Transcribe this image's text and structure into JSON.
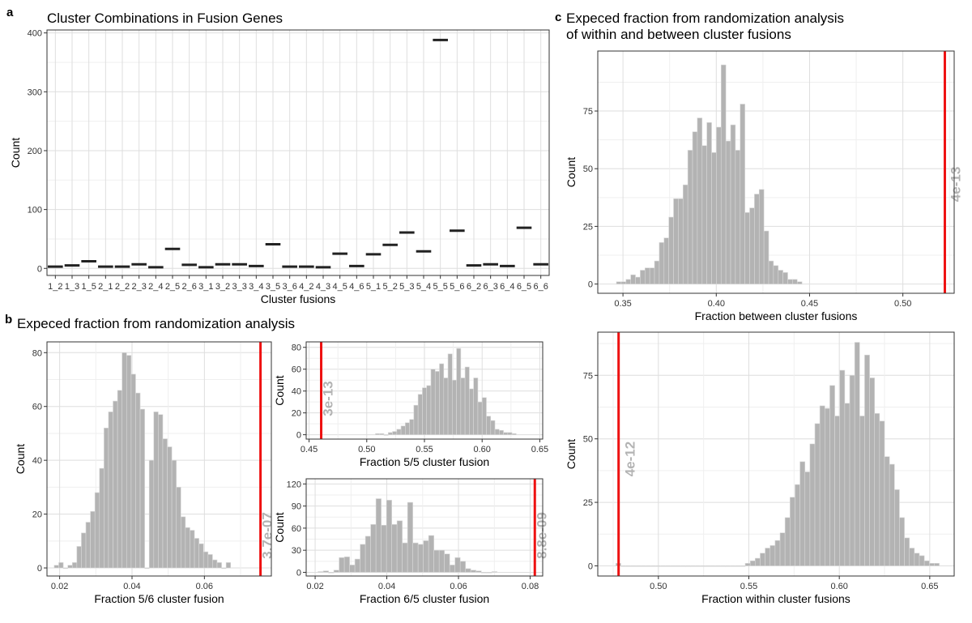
{
  "panel_letters": {
    "a": "a",
    "b": "b",
    "c": "c"
  },
  "section_titles": {
    "b": "Expeced fraction from randomization analysis",
    "c_line1": "Expeced fraction from randomization analysis",
    "c_line2": "of within and between cluster fusions"
  },
  "colors": {
    "bar_fill": "#b3b3b3",
    "bar_stroke": "#d9d9d9",
    "red_line": "#ee1111",
    "annotation": "#b3b3b3",
    "grid_major": "#dedede",
    "grid_minor": "#efefef",
    "crossbar": "#222222"
  },
  "chart_data": [
    {
      "id": "a",
      "type": "crossbar",
      "title": "Cluster Combinations in Fusion Genes",
      "xlabel": "Cluster fusions",
      "ylabel": "Count",
      "ylim": [
        -12,
        405
      ],
      "yticks": [
        0,
        100,
        200,
        300,
        400
      ],
      "categories": [
        "1_2",
        "1_3",
        "1_5",
        "2_1",
        "2_2",
        "2_3",
        "2_4",
        "2_5",
        "2_6",
        "3_1",
        "3_2",
        "3_3",
        "3_4",
        "3_5",
        "3_6",
        "4_2",
        "4_3",
        "4_5",
        "4_6",
        "5_1",
        "5_2",
        "5_3",
        "5_4",
        "5_5",
        "5_6",
        "6_2",
        "6_3",
        "6_4",
        "6_5",
        "6_6"
      ],
      "tick_labels": [
        "1_2",
        "1_3",
        "1_5",
        "2_1",
        "2_2",
        "2_3",
        "2_4",
        "2_5",
        "2_6",
        "3_1",
        "3_2",
        "3_3",
        "3_4",
        "3_5",
        "3_6",
        "4_2",
        "4_3",
        "4_5",
        "4_6",
        "5_1",
        "5_2",
        "5_3",
        "5_4",
        "5_5",
        "5_6",
        "6_2",
        "6_3",
        "6_4",
        "6_5",
        "6_6"
      ],
      "values": [
        3,
        5,
        12,
        3,
        3,
        7,
        2,
        33,
        6,
        2,
        7,
        7,
        4,
        41,
        3,
        3,
        2,
        25,
        4,
        24,
        40,
        61,
        29,
        388,
        64,
        5,
        7,
        4,
        69,
        7
      ]
    },
    {
      "id": "b_main",
      "type": "histogram",
      "xlabel": "Fraction 5/6 cluster fusion",
      "ylabel": "Count",
      "xlim": [
        0.0165,
        0.0785
      ],
      "ylim": [
        -3,
        84
      ],
      "xticks": [
        0.02,
        0.04,
        0.06
      ],
      "xtick_labels": [
        "0.02",
        "0.04",
        "0.06"
      ],
      "yticks": [
        0,
        20,
        40,
        60,
        80
      ],
      "bin_start": 0.0185,
      "bin_width": 0.00125,
      "counts": [
        1,
        2,
        0,
        1,
        2,
        8,
        13,
        17,
        21,
        28,
        37,
        52,
        58,
        62,
        66,
        80,
        79,
        72,
        65,
        59,
        0,
        40,
        58,
        57,
        48,
        45,
        40,
        30,
        19,
        15,
        14,
        11,
        9,
        6,
        5,
        3,
        2,
        0,
        2
      ],
      "red_line_x": 0.0755,
      "annotation": "3.7e-07"
    },
    {
      "id": "b_top",
      "type": "histogram",
      "xlabel": "Fraction 5/5 cluster fusion",
      "ylabel": "Count",
      "xlim": [
        0.4475,
        0.6525
      ],
      "ylim": [
        -4,
        85
      ],
      "xticks": [
        0.45,
        0.5,
        0.55,
        0.6,
        0.65
      ],
      "xtick_labels": [
        "0.45",
        "0.50",
        "0.55",
        "0.60",
        "0.65"
      ],
      "yticks": [
        0,
        20,
        40,
        60,
        80
      ],
      "bin_start": 0.5075,
      "bin_width": 0.0037,
      "counts": [
        1,
        1,
        0,
        2,
        3,
        5,
        8,
        11,
        14,
        27,
        37,
        43,
        45,
        60,
        58,
        65,
        52,
        74,
        50,
        79,
        52,
        62,
        42,
        52,
        30,
        34,
        17,
        13,
        5,
        4,
        2,
        2,
        1
      ],
      "red_line_x": 0.4605,
      "annotation": "3e-13"
    },
    {
      "id": "b_bottom",
      "type": "histogram",
      "xlabel": "Fraction 6/5 cluster fusion",
      "ylabel": "Count",
      "xlim": [
        0.0175,
        0.0835
      ],
      "ylim": [
        -5,
        127
      ],
      "xticks": [
        0.02,
        0.04,
        0.06,
        0.08
      ],
      "xtick_labels": [
        "0.02",
        "0.04",
        "0.06",
        "0.08"
      ],
      "yticks": [
        0,
        30,
        60,
        90,
        120
      ],
      "bin_start": 0.0208,
      "bin_width": 0.00147,
      "counts": [
        1,
        2,
        0,
        3,
        20,
        21,
        10,
        18,
        38,
        49,
        65,
        100,
        64,
        98,
        65,
        70,
        40,
        95,
        40,
        38,
        43,
        50,
        30,
        30,
        25,
        10,
        20,
        15,
        5,
        3,
        2,
        0,
        0,
        1
      ],
      "red_line_x": 0.0813,
      "annotation": "8.8e-09"
    },
    {
      "id": "c_top",
      "type": "histogram",
      "xlabel": "Fraction between cluster fusions",
      "ylabel": "Count",
      "xlim": [
        0.3365,
        0.5275
      ],
      "ylim": [
        -4,
        101
      ],
      "xticks": [
        0.35,
        0.4,
        0.45,
        0.5
      ],
      "xtick_labels": [
        "0.35",
        "0.40",
        "0.45",
        "0.50"
      ],
      "yticks": [
        0,
        25,
        50,
        75
      ],
      "bin_start": 0.3465,
      "bin_width": 0.00255,
      "counts": [
        1,
        1,
        2,
        4,
        3,
        6,
        7,
        7,
        10,
        18,
        20,
        29,
        37,
        37,
        43,
        58,
        66,
        72,
        60,
        70,
        57,
        68,
        95,
        62,
        69,
        58,
        78,
        31,
        33,
        39,
        41,
        23,
        10,
        8,
        6,
        5,
        2,
        2,
        1
      ],
      "red_line_x": 0.5225,
      "annotation": "4e-13"
    },
    {
      "id": "c_bottom",
      "type": "histogram",
      "xlabel": "Fraction within cluster fusions",
      "ylabel": "Count",
      "xlim": [
        0.4665,
        0.6635
      ],
      "ylim": [
        -4,
        92
      ],
      "xticks": [
        0.5,
        0.55,
        0.6,
        0.65
      ],
      "xtick_labels": [
        "0.50",
        "0.55",
        "0.60",
        "0.65"
      ],
      "yticks": [
        0,
        25,
        50,
        75
      ],
      "bin_start": 0.4765,
      "bin_width": 0.00275,
      "counts": [
        1,
        0,
        0,
        0,
        0,
        0,
        0,
        0,
        0,
        0,
        0,
        0,
        0,
        0,
        0,
        0,
        0,
        0,
        0,
        0,
        0,
        0,
        0,
        0,
        0,
        0,
        1,
        2,
        3,
        5,
        7,
        8,
        10,
        13,
        19,
        27,
        32,
        41,
        37,
        48,
        56,
        63,
        62,
        71,
        59,
        77,
        64,
        75,
        88,
        59,
        83,
        74,
        60,
        57,
        43,
        40,
        30,
        19,
        11,
        7,
        5,
        4,
        2,
        1,
        1
      ],
      "red_line_x": 0.478,
      "annotation": "4e-12"
    }
  ]
}
